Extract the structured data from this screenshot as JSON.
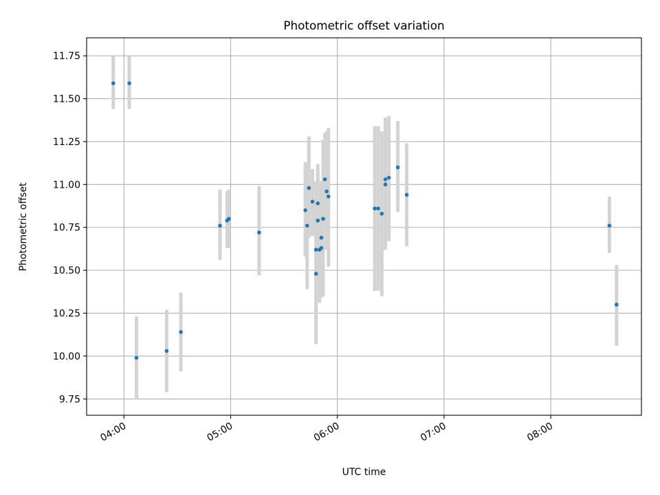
{
  "chart_data": {
    "type": "scatter",
    "title": "Photometric offset variation",
    "xlabel": "UTC time",
    "ylabel": "Photometric offset",
    "x_unit": "UTC time (HH:MM)",
    "xlim": [
      "03:39",
      "08:51"
    ],
    "ylim": [
      9.655,
      11.855
    ],
    "grid": true,
    "x_ticks": [
      "04:00",
      "05:00",
      "06:00",
      "07:00",
      "08:00"
    ],
    "y_ticks": [
      "9.75",
      "10.00",
      "10.25",
      "10.50",
      "10.75",
      "11.00",
      "11.25",
      "11.50",
      "11.75"
    ],
    "point_color": "#1f77b4",
    "errorbar_color": "#d3d3d3",
    "series": [
      {
        "points": [
          {
            "x": "03:54",
            "y": 11.59,
            "ylo": 11.44,
            "yhi": 11.75
          },
          {
            "x": "04:03",
            "y": 11.59,
            "ylo": 11.44,
            "yhi": 11.75
          },
          {
            "x": "04:07",
            "y": 9.99,
            "ylo": 9.75,
            "yhi": 10.23
          },
          {
            "x": "04:24",
            "y": 10.03,
            "ylo": 9.79,
            "yhi": 10.27
          },
          {
            "x": "04:32",
            "y": 10.14,
            "ylo": 9.91,
            "yhi": 10.37
          },
          {
            "x": "04:54",
            "y": 10.76,
            "ylo": 10.56,
            "yhi": 10.97
          },
          {
            "x": "04:58",
            "y": 10.79,
            "ylo": 10.63,
            "yhi": 10.96
          },
          {
            "x": "04:59",
            "y": 10.8,
            "ylo": 10.63,
            "yhi": 10.97
          },
          {
            "x": "05:16",
            "y": 10.72,
            "ylo": 10.47,
            "yhi": 10.99
          },
          {
            "x": "05:42",
            "y": 10.85,
            "ylo": 10.58,
            "yhi": 11.13
          },
          {
            "x": "05:43",
            "y": 10.76,
            "ylo": 10.39,
            "yhi": 11.12
          },
          {
            "x": "05:44",
            "y": 10.98,
            "ylo": 10.69,
            "yhi": 11.28
          },
          {
            "x": "05:46",
            "y": 10.9,
            "ylo": 10.7,
            "yhi": 11.09
          },
          {
            "x": "05:48",
            "y": 10.48,
            "ylo": 10.07,
            "yhi": 10.89
          },
          {
            "x": "05:48",
            "y": 10.62,
            "ylo": 10.22,
            "yhi": 11.02
          },
          {
            "x": "05:49",
            "y": 10.79,
            "ylo": 10.45,
            "yhi": 11.12
          },
          {
            "x": "05:49",
            "y": 10.89,
            "ylo": 10.71,
            "yhi": 11.07
          },
          {
            "x": "05:50",
            "y": 10.62,
            "ylo": 10.31,
            "yhi": 10.93
          },
          {
            "x": "05:51",
            "y": 10.63,
            "ylo": 10.34,
            "yhi": 10.92
          },
          {
            "x": "05:51",
            "y": 10.69,
            "ylo": 10.36,
            "yhi": 11.02
          },
          {
            "x": "05:52",
            "y": 10.8,
            "ylo": 10.35,
            "yhi": 11.26
          },
          {
            "x": "05:53",
            "y": 11.03,
            "ylo": 10.76,
            "yhi": 11.3
          },
          {
            "x": "05:54",
            "y": 10.96,
            "ylo": 10.62,
            "yhi": 11.31
          },
          {
            "x": "05:55",
            "y": 10.93,
            "ylo": 10.52,
            "yhi": 11.33
          },
          {
            "x": "06:21",
            "y": 10.86,
            "ylo": 10.38,
            "yhi": 11.34
          },
          {
            "x": "06:23",
            "y": 10.86,
            "ylo": 10.38,
            "yhi": 11.34
          },
          {
            "x": "06:25",
            "y": 10.83,
            "ylo": 10.35,
            "yhi": 11.31
          },
          {
            "x": "06:27",
            "y": 11.0,
            "ylo": 10.62,
            "yhi": 11.39
          },
          {
            "x": "06:27",
            "y": 11.03,
            "ylo": 10.69,
            "yhi": 11.37
          },
          {
            "x": "06:29",
            "y": 11.04,
            "ylo": 10.67,
            "yhi": 11.4
          },
          {
            "x": "06:34",
            "y": 11.1,
            "ylo": 10.84,
            "yhi": 11.37
          },
          {
            "x": "06:39",
            "y": 10.94,
            "ylo": 10.64,
            "yhi": 11.24
          },
          {
            "x": "08:33",
            "y": 10.76,
            "ylo": 10.6,
            "yhi": 10.93
          },
          {
            "x": "08:37",
            "y": 10.3,
            "ylo": 10.06,
            "yhi": 10.53
          }
        ]
      }
    ]
  }
}
